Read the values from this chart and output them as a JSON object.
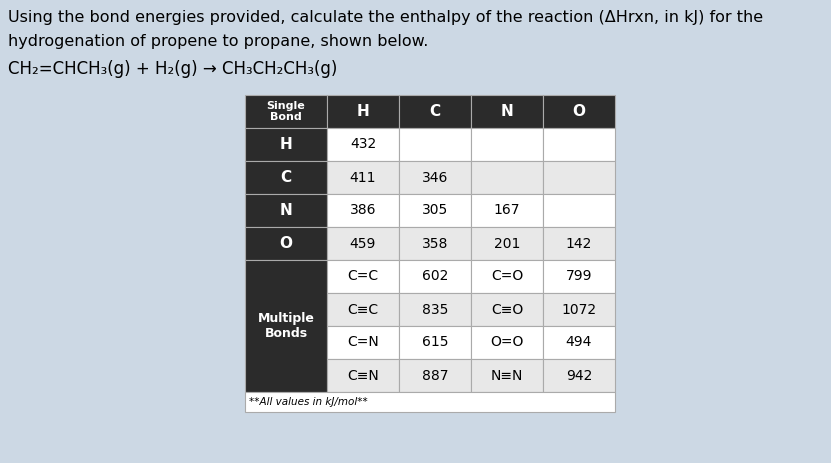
{
  "title_line1": "Using the bond energies provided, calculate the enthalpy of the reaction (ΔHrxn, in kJ) for the",
  "title_line2": "hydrogenation of propene to propane, shown below.",
  "header_bg": "#2b2b2b",
  "cell_bg_white": "#ffffff",
  "cell_bg_light": "#e8e8e8",
  "border_color": "#aaaaaa",
  "col_headers": [
    "H",
    "C",
    "N",
    "O"
  ],
  "single_bond_rows": [
    {
      "label": "H",
      "values": [
        "432",
        "",
        "",
        ""
      ]
    },
    {
      "label": "C",
      "values": [
        "411",
        "346",
        "",
        ""
      ]
    },
    {
      "label": "N",
      "values": [
        "386",
        "305",
        "167",
        ""
      ]
    },
    {
      "label": "O",
      "values": [
        "459",
        "358",
        "201",
        "142"
      ]
    }
  ],
  "multiple_bonds_label": "Multiple\nBonds",
  "multiple_bond_rows": [
    {
      "left_label": "C=C",
      "left_val": "602",
      "right_label": "C=O",
      "right_val": "799"
    },
    {
      "left_label": "C≡C",
      "left_val": "835",
      "right_label": "C≡O",
      "right_val": "1072"
    },
    {
      "left_label": "C=N",
      "left_val": "615",
      "right_label": "O=O",
      "right_val": "494"
    },
    {
      "left_label": "C≡N",
      "left_val": "887",
      "right_label": "N≡N",
      "right_val": "942"
    }
  ],
  "footnote": "**All values in kJ/mol**",
  "bg_color": "#ccd8e4",
  "text_fontsize": 11.5,
  "eq_fontsize": 12,
  "table_fontsize_header": 11,
  "table_fontsize_data": 10,
  "table_fontsize_label": 9,
  "table_fontsize_small": 8
}
